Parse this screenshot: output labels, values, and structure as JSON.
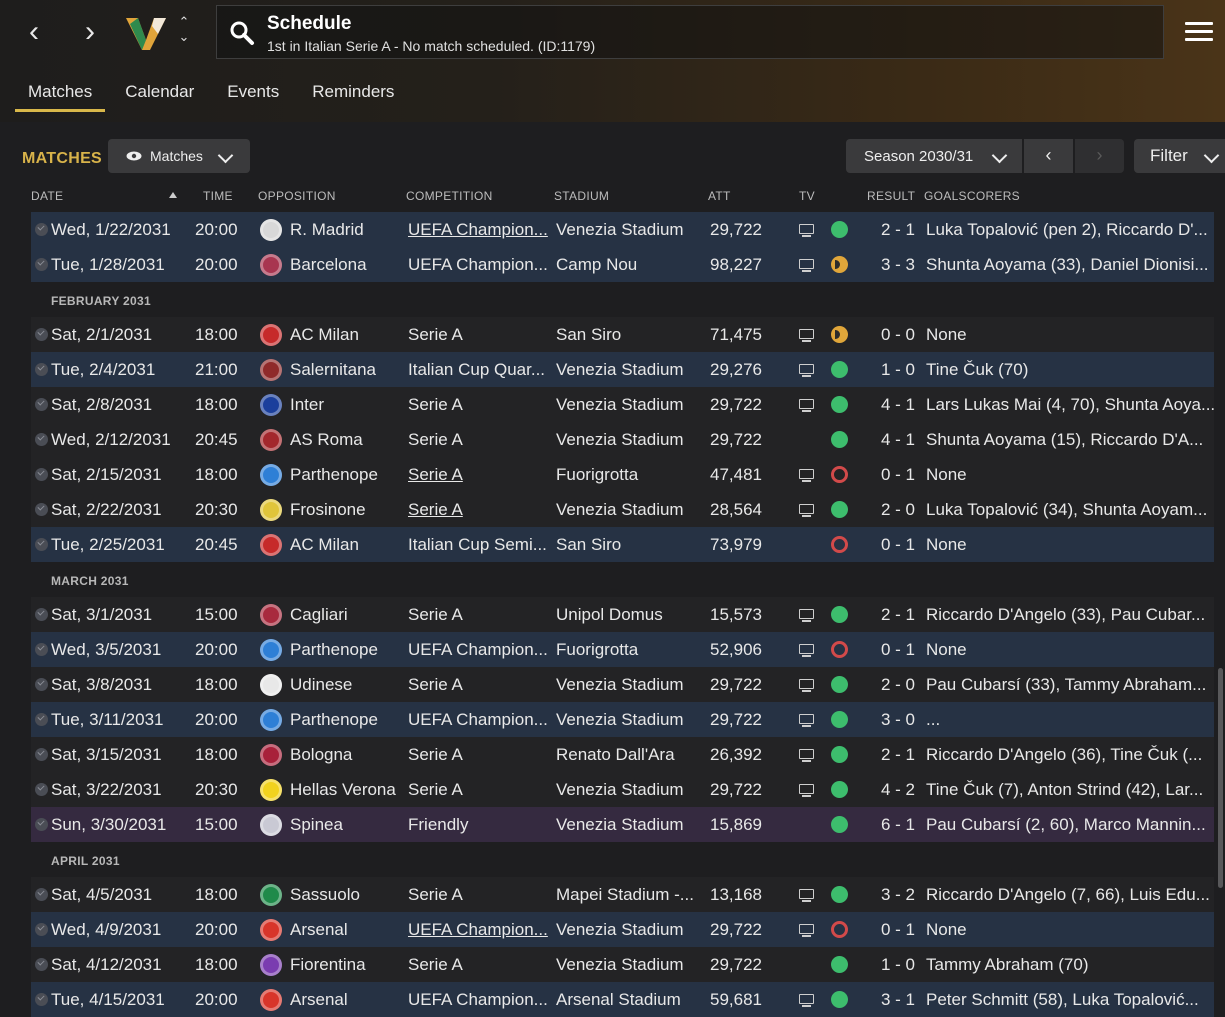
{
  "header": {
    "back": "‹",
    "forward": "›",
    "title": "Schedule",
    "subtitle": "1st in Italian Serie A - No match scheduled. (ID:1179)"
  },
  "tabs": [
    "Matches",
    "Calendar",
    "Events",
    "Reminders"
  ],
  "toolbar": {
    "section_label": "MATCHES",
    "view_dropdown": "Matches",
    "season": "Season 2030/31",
    "filter": "Filter"
  },
  "columns": {
    "date": "DATE",
    "time": "TIME",
    "opposition": "OPPOSITION",
    "competition": "COMPETITION",
    "stadium": "STADIUM",
    "att": "ATT",
    "tv": "TV",
    "result": "RESULT",
    "goalscorers": "GOALSCORERS"
  },
  "months": [
    "FEBRUARY 2031",
    "MARCH 2031",
    "APRIL 2031"
  ],
  "colors": {
    "accent": "#d9b84a",
    "win": "#3dbd6d",
    "loss": "#d24a4a",
    "draw": "#e0a63a",
    "home_row": "#263244",
    "friendly_row": "#352a40"
  },
  "matches": [
    {
      "date": "Wed, 1/22/2031",
      "time": "20:00",
      "opp": "R. Madrid",
      "comp": "UEFA Champion...",
      "stadium": "Venezia Stadium",
      "att": "29,722",
      "tv": true,
      "outcome": "win",
      "score": "2 - 1",
      "scorers": "Luka Topalović (pen 2), Riccardo D'...",
      "badge": "#d8d8d8",
      "icon": "real-madrid-crest-icon"
    },
    {
      "date": "Tue, 1/28/2031",
      "time": "20:00",
      "opp": "Barcelona",
      "comp": "UEFA Champion...",
      "stadium": "Camp Nou",
      "att": "98,227",
      "tv": true,
      "outcome": "draw",
      "score": "3 - 3",
      "scorers": "Shunta Aoyama (33), Daniel Dionisi...",
      "badge": "#a83550",
      "icon": "barcelona-crest-icon"
    },
    {
      "date": "Sat, 2/1/2031",
      "time": "18:00",
      "opp": "AC Milan",
      "comp": "Serie A",
      "stadium": "San Siro",
      "att": "71,475",
      "tv": true,
      "outcome": "draw",
      "score": "0 - 0",
      "scorers": "None",
      "badge": "#c62a2a",
      "icon": "ac-milan-crest-icon"
    },
    {
      "date": "Tue, 2/4/2031",
      "time": "21:00",
      "opp": "Salernitana",
      "comp": "Italian Cup Quar...",
      "stadium": "Venezia Stadium",
      "att": "29,276",
      "tv": true,
      "outcome": "win",
      "score": "1 - 0",
      "scorers": "Tine Čuk (70)",
      "badge": "#8f2a2a",
      "icon": "salernitana-crest-icon"
    },
    {
      "date": "Sat, 2/8/2031",
      "time": "18:00",
      "opp": "Inter",
      "comp": "Serie A",
      "stadium": "Venezia Stadium",
      "att": "29,722",
      "tv": true,
      "outcome": "win",
      "score": "4 - 1",
      "scorers": "Lars Lukas Mai (4, 70), Shunta Aoya...",
      "badge": "#1b3f9c",
      "icon": "inter-crest-icon"
    },
    {
      "date": "Wed, 2/12/2031",
      "time": "20:45",
      "opp": "AS Roma",
      "comp": "Serie A",
      "stadium": "Venezia Stadium",
      "att": "29,722",
      "tv": false,
      "outcome": "win",
      "score": "4 - 1",
      "scorers": "Shunta Aoyama (15), Riccardo D'A...",
      "badge": "#a3272c",
      "icon": "as-roma-crest-icon"
    },
    {
      "date": "Sat, 2/15/2031",
      "time": "18:00",
      "opp": "Parthenope",
      "comp": "Serie A",
      "stadium": "Fuorigrotta",
      "att": "47,481",
      "tv": true,
      "outcome": "loss",
      "score": "0 - 1",
      "scorers": "None",
      "badge": "#2e7fd6",
      "icon": "parthenope-crest-icon"
    },
    {
      "date": "Sat, 2/22/2031",
      "time": "20:30",
      "opp": "Frosinone",
      "comp": "Serie A",
      "stadium": "Venezia Stadium",
      "att": "28,564",
      "tv": true,
      "outcome": "win",
      "score": "2 - 0",
      "scorers": "Luka Topalović (34), Shunta Aoyam...",
      "badge": "#e0c53a",
      "icon": "frosinone-crest-icon"
    },
    {
      "date": "Tue, 2/25/2031",
      "time": "20:45",
      "opp": "AC Milan",
      "comp": "Italian Cup Semi...",
      "stadium": "San Siro",
      "att": "73,979",
      "tv": false,
      "outcome": "loss",
      "score": "0 - 1",
      "scorers": "None",
      "badge": "#c62a2a",
      "icon": "ac-milan-crest-icon"
    },
    {
      "date": "Sat, 3/1/2031",
      "time": "15:00",
      "opp": "Cagliari",
      "comp": "Serie A",
      "stadium": "Unipol Domus",
      "att": "15,573",
      "tv": true,
      "outcome": "win",
      "score": "2 - 1",
      "scorers": "Riccardo D'Angelo (33), Pau Cubar...",
      "badge": "#a82a3e",
      "icon": "cagliari-crest-icon"
    },
    {
      "date": "Wed, 3/5/2031",
      "time": "20:00",
      "opp": "Parthenope",
      "comp": "UEFA Champion...",
      "stadium": "Fuorigrotta",
      "att": "52,906",
      "tv": true,
      "outcome": "loss",
      "score": "0 - 1",
      "scorers": "None",
      "badge": "#2e7fd6",
      "icon": "parthenope-crest-icon"
    },
    {
      "date": "Sat, 3/8/2031",
      "time": "18:00",
      "opp": "Udinese",
      "comp": "Serie A",
      "stadium": "Venezia Stadium",
      "att": "29,722",
      "tv": true,
      "outcome": "win",
      "score": "2 - 0",
      "scorers": "Pau Cubarsí (33), Tammy Abraham...",
      "badge": "#e8e8e8",
      "icon": "udinese-crest-icon"
    },
    {
      "date": "Tue, 3/11/2031",
      "time": "20:00",
      "opp": "Parthenope",
      "comp": "UEFA Champion...",
      "stadium": "Venezia Stadium",
      "att": "29,722",
      "tv": true,
      "outcome": "win",
      "score": "3 - 0",
      "scorers": "...",
      "badge": "#2e7fd6",
      "icon": "parthenope-crest-icon"
    },
    {
      "date": "Sat, 3/15/2031",
      "time": "18:00",
      "opp": "Bologna",
      "comp": "Serie A",
      "stadium": "Renato Dall'Ara",
      "att": "26,392",
      "tv": true,
      "outcome": "win",
      "score": "2 - 1",
      "scorers": "Riccardo D'Angelo (36), Tine Čuk (...",
      "badge": "#a8203a",
      "icon": "bologna-crest-icon"
    },
    {
      "date": "Sat, 3/22/2031",
      "time": "20:30",
      "opp": "Hellas Verona",
      "comp": "Serie A",
      "stadium": "Venezia Stadium",
      "att": "29,722",
      "tv": true,
      "outcome": "win",
      "score": "4 - 2",
      "scorers": "Tine Čuk (7), Anton Strind (42), Lar...",
      "badge": "#f1d21e",
      "icon": "hellas-verona-crest-icon"
    },
    {
      "date": "Sun, 3/30/2031",
      "time": "15:00",
      "opp": "Spinea",
      "comp": "Friendly",
      "stadium": "Venezia Stadium",
      "att": "15,869",
      "tv": false,
      "outcome": "win",
      "score": "6 - 1",
      "scorers": "Pau Cubarsí (2, 60), Marco Mannin...",
      "badge": "#c9c9d4",
      "icon": "spinea-crest-icon"
    },
    {
      "date": "Sat, 4/5/2031",
      "time": "18:00",
      "opp": "Sassuolo",
      "comp": "Serie A",
      "stadium": "Mapei Stadium -...",
      "att": "13,168",
      "tv": true,
      "outcome": "win",
      "score": "3 - 2",
      "scorers": "Riccardo D'Angelo (7, 66), Luis Edu...",
      "badge": "#1f8a4a",
      "icon": "sassuolo-crest-icon"
    },
    {
      "date": "Wed, 4/9/2031",
      "time": "20:00",
      "opp": "Arsenal",
      "comp": "UEFA Champion...",
      "stadium": "Venezia Stadium",
      "att": "29,722",
      "tv": true,
      "outcome": "loss",
      "score": "0 - 1",
      "scorers": "None",
      "badge": "#d8352a",
      "icon": "arsenal-crest-icon"
    },
    {
      "date": "Sat, 4/12/2031",
      "time": "18:00",
      "opp": "Fiorentina",
      "comp": "Serie A",
      "stadium": "Venezia Stadium",
      "att": "29,722",
      "tv": false,
      "outcome": "win",
      "score": "1 - 0",
      "scorers": "Tammy Abraham (70)",
      "badge": "#7a3cb0",
      "icon": "fiorentina-crest-icon"
    },
    {
      "date": "Tue, 4/15/2031",
      "time": "20:00",
      "opp": "Arsenal",
      "comp": "UEFA Champion...",
      "stadium": "Arsenal Stadium",
      "att": "59,681",
      "tv": true,
      "outcome": "win",
      "score": "3 - 1",
      "scorers": "Peter Schmitt (58), Luka Topalović...",
      "badge": "#d8352a",
      "icon": "arsenal-crest-icon"
    }
  ]
}
